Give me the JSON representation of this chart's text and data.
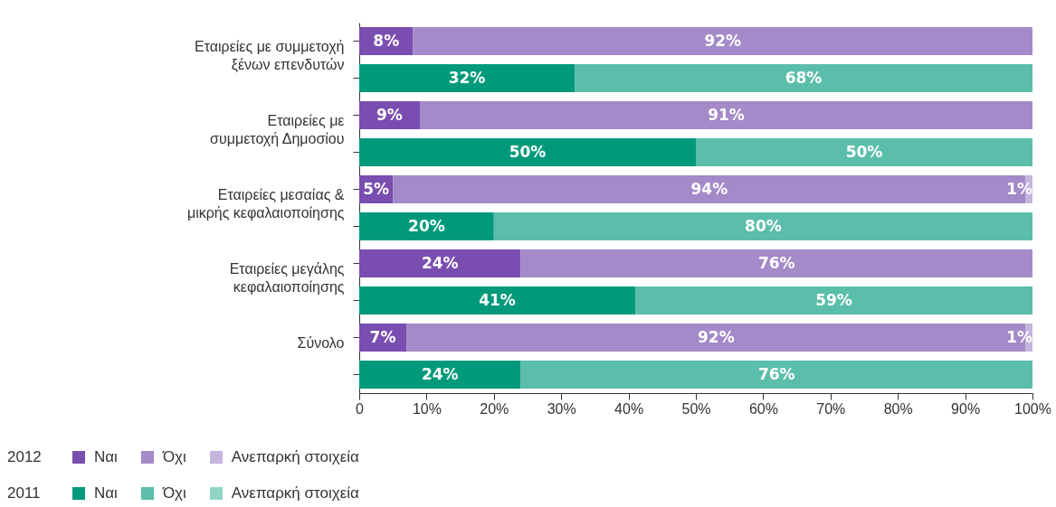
{
  "chart_data": {
    "type": "bar",
    "orientation": "horizontal",
    "stacked": true,
    "categories": [
      "Εταιρείες με συμμετοχή ξένων επενδυτών",
      null,
      "Εταιρείες με συμμετοχή Δημοσίου",
      null,
      "Εταιρείες μεσαίας & μικρής κεφαλαιοποίησης",
      null,
      "Εταιρείες μεγάλης κεφαλαιοποίησης",
      null,
      "Σύνολο",
      null
    ],
    "series": [
      {
        "name": "Ναι",
        "color": "#7a4db0",
        "values": [
          8,
          null,
          9,
          null,
          5,
          null,
          24,
          null,
          7,
          null
        ],
        "value_labels": [
          "8%",
          null,
          "9%",
          null,
          "5%",
          null,
          "24%",
          null,
          "7%",
          null
        ]
      },
      {
        "name": "Όχι",
        "color": "#a48ac8",
        "values": [
          92,
          null,
          91,
          null,
          94,
          null,
          76,
          null,
          92,
          null
        ],
        "value_labels": [
          "92%",
          null,
          "91%",
          null,
          "94%",
          null,
          "76%",
          null,
          "92%",
          null
        ]
      },
      {
        "name": "Ανεπαρκή στοιχεία",
        "color": "#c5b4dd",
        "values": [
          null,
          null,
          null,
          null,
          1,
          null,
          null,
          null,
          1,
          null
        ],
        "value_labels": [
          null,
          null,
          null,
          null,
          "1%",
          null,
          null,
          null,
          "1%",
          null
        ]
      },
      {
        "name": "Ναι",
        "color": "#009a7b",
        "values": [
          null,
          32,
          null,
          50,
          null,
          20,
          null,
          41,
          null,
          24
        ],
        "value_labels": [
          null,
          "32%",
          null,
          "50%",
          null,
          "20%",
          null,
          "41%",
          null,
          "24%"
        ]
      },
      {
        "name": "Όχι",
        "color": "#5bbeaa",
        "values": [
          null,
          68,
          null,
          50,
          null,
          80,
          null,
          59,
          null,
          76
        ],
        "value_labels": [
          null,
          "68%",
          null,
          "50%",
          null,
          "80%",
          null,
          "59%",
          null,
          "76%"
        ]
      },
      {
        "name": "Ανεπαρκή στοιχεία",
        "color": "#8fd5c5",
        "values": [
          null,
          null,
          null,
          null,
          null,
          null,
          null,
          null,
          null,
          null
        ]
      }
    ],
    "annotations": [
      "2012",
      "2011"
    ],
    "xlim": [
      0,
      100
    ],
    "xticks": [
      0,
      {
        "value": 10,
        "label": "10%"
      },
      {
        "value": 20,
        "label": "20%"
      },
      {
        "value": 30,
        "label": "30%"
      },
      {
        "value": 40,
        "label": "40%"
      },
      {
        "value": 50,
        "label": "50%"
      },
      {
        "value": 60,
        "label": "60%"
      },
      {
        "value": 70,
        "label": "70%"
      },
      {
        "value": 80,
        "label": "80%"
      },
      {
        "value": 90,
        "label": "90%"
      },
      {
        "value": 100,
        "label": "100%"
      }
    ],
    "legend": "bottom left"
  }
}
